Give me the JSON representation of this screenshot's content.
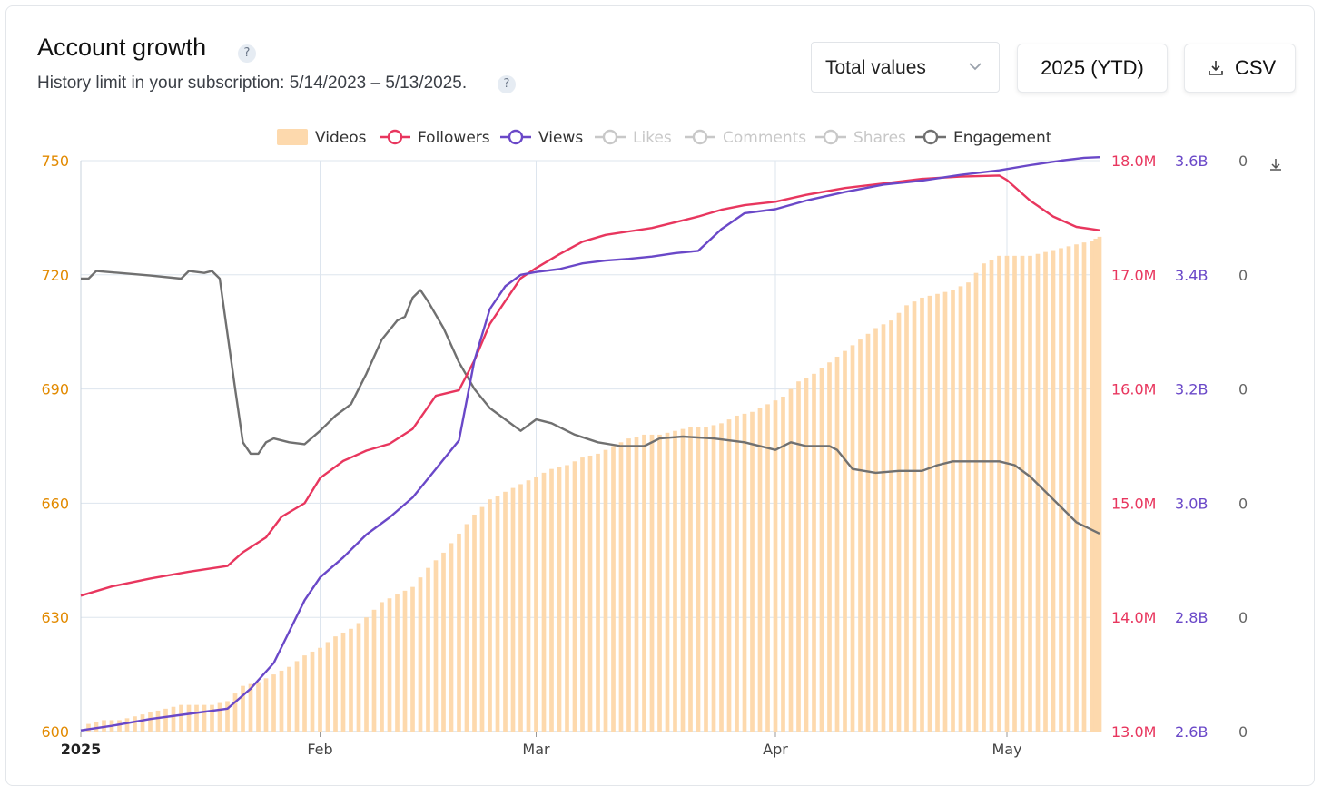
{
  "header": {
    "title": "Account growth",
    "subtitle": "History limit in your subscription: 5/14/2023 – 5/13/2025.",
    "help_glyph": "?",
    "select_value": "Total values",
    "period_button": "2025 (YTD)",
    "csv_button": "CSV"
  },
  "colors": {
    "videos": "#fdd9ad",
    "followers": "#e8365e",
    "views": "#6a48c8",
    "engagement": "#707070",
    "disabled": "#c8c8c8",
    "left_axis": "#e28a00",
    "grid": "#dde5ee"
  },
  "chart_data": {
    "type": "line",
    "x_start": "2025-01-01",
    "x_end": "2025-05-13",
    "x_tick_labels": [
      {
        "label": "2025",
        "date": "2025-01-01",
        "bold": true
      },
      {
        "label": "Feb",
        "date": "2025-02-01"
      },
      {
        "label": "Mar",
        "date": "2025-03-01"
      },
      {
        "label": "Apr",
        "date": "2025-04-01"
      },
      {
        "label": "May",
        "date": "2025-05-01"
      }
    ],
    "axes": {
      "left": {
        "ticks": [
          "750",
          "720",
          "690",
          "660",
          "630",
          "600"
        ],
        "range": [
          600,
          750
        ],
        "color": "#e28a00"
      },
      "followers": {
        "ticks": [
          "18.0M",
          "17.0M",
          "16.0M",
          "15.0M",
          "14.0M",
          "13.0M"
        ],
        "range": [
          13000000,
          18000000
        ],
        "color": "#e8365e"
      },
      "views": {
        "ticks": [
          "3.6B",
          "3.4B",
          "3.2B",
          "3.0B",
          "2.8B",
          "2.6B"
        ],
        "range": [
          2600000000,
          3600000000
        ],
        "color": "#6a48c8"
      },
      "engagement": {
        "ticks": [
          "0",
          "0",
          "0",
          "0",
          "0",
          "0"
        ],
        "color": "#666666"
      }
    },
    "legend": {
      "position": "top-center",
      "items": [
        {
          "name": "Videos",
          "kind": "bar",
          "enabled": true
        },
        {
          "name": "Followers",
          "kind": "line",
          "enabled": true
        },
        {
          "name": "Views",
          "kind": "line",
          "enabled": true
        },
        {
          "name": "Likes",
          "kind": "line",
          "enabled": false
        },
        {
          "name": "Comments",
          "kind": "line",
          "enabled": false
        },
        {
          "name": "Shares",
          "kind": "line",
          "enabled": false
        },
        {
          "name": "Engagement",
          "kind": "line",
          "enabled": true
        }
      ]
    },
    "series": [
      {
        "name": "Videos",
        "axis": "left",
        "type": "bar",
        "points": [
          [
            "2025-01-02",
            602
          ],
          [
            "2025-01-04",
            603
          ],
          [
            "2025-01-06",
            603
          ],
          [
            "2025-01-08",
            604
          ],
          [
            "2025-01-10",
            605
          ],
          [
            "2025-01-12",
            606
          ],
          [
            "2025-01-14",
            607
          ],
          [
            "2025-01-16",
            607
          ],
          [
            "2025-01-18",
            607
          ],
          [
            "2025-01-20",
            608
          ],
          [
            "2025-01-22",
            612
          ],
          [
            "2025-01-24",
            613
          ],
          [
            "2025-01-26",
            615
          ],
          [
            "2025-01-28",
            617
          ],
          [
            "2025-01-30",
            620
          ],
          [
            "2025-02-01",
            622
          ],
          [
            "2025-02-03",
            625
          ],
          [
            "2025-02-05",
            627
          ],
          [
            "2025-02-07",
            630
          ],
          [
            "2025-02-09",
            634
          ],
          [
            "2025-02-11",
            636
          ],
          [
            "2025-02-13",
            638
          ],
          [
            "2025-02-15",
            643
          ],
          [
            "2025-02-17",
            647
          ],
          [
            "2025-02-19",
            652
          ],
          [
            "2025-02-21",
            657
          ],
          [
            "2025-02-23",
            661
          ],
          [
            "2025-02-25",
            663
          ],
          [
            "2025-02-27",
            665
          ],
          [
            "2025-03-01",
            667
          ],
          [
            "2025-03-03",
            669
          ],
          [
            "2025-03-05",
            670
          ],
          [
            "2025-03-07",
            672
          ],
          [
            "2025-03-09",
            673
          ],
          [
            "2025-03-11",
            675
          ],
          [
            "2025-03-13",
            677
          ],
          [
            "2025-03-15",
            678
          ],
          [
            "2025-03-17",
            678
          ],
          [
            "2025-03-19",
            679
          ],
          [
            "2025-03-21",
            680
          ],
          [
            "2025-03-23",
            680
          ],
          [
            "2025-03-25",
            681
          ],
          [
            "2025-03-27",
            683
          ],
          [
            "2025-03-29",
            684
          ],
          [
            "2025-03-31",
            686
          ],
          [
            "2025-04-02",
            688
          ],
          [
            "2025-04-04",
            692
          ],
          [
            "2025-04-06",
            694
          ],
          [
            "2025-04-08",
            697
          ],
          [
            "2025-04-10",
            700
          ],
          [
            "2025-04-12",
            703
          ],
          [
            "2025-04-14",
            706
          ],
          [
            "2025-04-16",
            708
          ],
          [
            "2025-04-18",
            712
          ],
          [
            "2025-04-20",
            714
          ],
          [
            "2025-04-22",
            715
          ],
          [
            "2025-04-24",
            716
          ],
          [
            "2025-04-26",
            718
          ],
          [
            "2025-04-28",
            723
          ],
          [
            "2025-04-30",
            725
          ],
          [
            "2025-05-02",
            725
          ],
          [
            "2025-05-04",
            725
          ],
          [
            "2025-05-06",
            726
          ],
          [
            "2025-05-08",
            727
          ],
          [
            "2025-05-10",
            728
          ],
          [
            "2025-05-12",
            729
          ],
          [
            "2025-05-13",
            730
          ]
        ]
      },
      {
        "name": "Followers",
        "axis": "followers",
        "points": [
          [
            "2025-01-01",
            14190000
          ],
          [
            "2025-01-05",
            14270000
          ],
          [
            "2025-01-10",
            14340000
          ],
          [
            "2025-01-15",
            14400000
          ],
          [
            "2025-01-20",
            14450000
          ],
          [
            "2025-01-22",
            14570000
          ],
          [
            "2025-01-25",
            14700000
          ],
          [
            "2025-01-27",
            14880000
          ],
          [
            "2025-01-30",
            15000000
          ],
          [
            "2025-02-01",
            15220000
          ],
          [
            "2025-02-04",
            15370000
          ],
          [
            "2025-02-07",
            15460000
          ],
          [
            "2025-02-10",
            15520000
          ],
          [
            "2025-02-13",
            15650000
          ],
          [
            "2025-02-16",
            15940000
          ],
          [
            "2025-02-19",
            15990000
          ],
          [
            "2025-02-21",
            16250000
          ],
          [
            "2025-02-23",
            16570000
          ],
          [
            "2025-02-25",
            16770000
          ],
          [
            "2025-02-27",
            16970000
          ],
          [
            "2025-03-01",
            17060000
          ],
          [
            "2025-03-04",
            17180000
          ],
          [
            "2025-03-07",
            17290000
          ],
          [
            "2025-03-10",
            17350000
          ],
          [
            "2025-03-13",
            17380000
          ],
          [
            "2025-03-16",
            17410000
          ],
          [
            "2025-03-19",
            17460000
          ],
          [
            "2025-03-22",
            17510000
          ],
          [
            "2025-03-25",
            17570000
          ],
          [
            "2025-03-28",
            17610000
          ],
          [
            "2025-04-01",
            17640000
          ],
          [
            "2025-04-05",
            17700000
          ],
          [
            "2025-04-10",
            17760000
          ],
          [
            "2025-04-15",
            17800000
          ],
          [
            "2025-04-20",
            17840000
          ],
          [
            "2025-04-25",
            17860000
          ],
          [
            "2025-04-30",
            17870000
          ],
          [
            "2025-05-01",
            17830000
          ],
          [
            "2025-05-04",
            17650000
          ],
          [
            "2025-05-07",
            17510000
          ],
          [
            "2025-05-10",
            17420000
          ],
          [
            "2025-05-13",
            17390000
          ]
        ]
      },
      {
        "name": "Views",
        "axis": "views",
        "points": [
          [
            "2025-01-01",
            2602000000
          ],
          [
            "2025-01-05",
            2610000000
          ],
          [
            "2025-01-10",
            2622000000
          ],
          [
            "2025-01-15",
            2631000000
          ],
          [
            "2025-01-20",
            2640000000
          ],
          [
            "2025-01-23",
            2675000000
          ],
          [
            "2025-01-26",
            2720000000
          ],
          [
            "2025-01-28",
            2775000000
          ],
          [
            "2025-01-30",
            2830000000
          ],
          [
            "2025-02-01",
            2870000000
          ],
          [
            "2025-02-04",
            2905000000
          ],
          [
            "2025-02-07",
            2945000000
          ],
          [
            "2025-02-10",
            2975000000
          ],
          [
            "2025-02-13",
            3010000000
          ],
          [
            "2025-02-16",
            3060000000
          ],
          [
            "2025-02-19",
            3110000000
          ],
          [
            "2025-02-21",
            3250000000
          ],
          [
            "2025-02-23",
            3340000000
          ],
          [
            "2025-02-25",
            3380000000
          ],
          [
            "2025-02-27",
            3400000000
          ],
          [
            "2025-03-01",
            3405000000
          ],
          [
            "2025-03-04",
            3410000000
          ],
          [
            "2025-03-07",
            3420000000
          ],
          [
            "2025-03-10",
            3425000000
          ],
          [
            "2025-03-13",
            3428000000
          ],
          [
            "2025-03-16",
            3432000000
          ],
          [
            "2025-03-19",
            3438000000
          ],
          [
            "2025-03-22",
            3442000000
          ],
          [
            "2025-03-25",
            3480000000
          ],
          [
            "2025-03-28",
            3508000000
          ],
          [
            "2025-04-01",
            3515000000
          ],
          [
            "2025-04-05",
            3530000000
          ],
          [
            "2025-04-10",
            3545000000
          ],
          [
            "2025-04-15",
            3558000000
          ],
          [
            "2025-04-20",
            3565000000
          ],
          [
            "2025-04-25",
            3575000000
          ],
          [
            "2025-04-30",
            3583000000
          ],
          [
            "2025-05-04",
            3592000000
          ],
          [
            "2025-05-08",
            3600000000
          ],
          [
            "2025-05-11",
            3605000000
          ],
          [
            "2025-05-13",
            3606000000
          ]
        ]
      },
      {
        "name": "Engagement",
        "axis": "left_scaled_visual",
        "points": [
          [
            "2025-01-01",
            719
          ],
          [
            "2025-01-02",
            719
          ],
          [
            "2025-01-03",
            721
          ],
          [
            "2025-01-06",
            720.5
          ],
          [
            "2025-01-10",
            719.8
          ],
          [
            "2025-01-14",
            719
          ],
          [
            "2025-01-15",
            721
          ],
          [
            "2025-01-17",
            720.5
          ],
          [
            "2025-01-18",
            721
          ],
          [
            "2025-01-19",
            719
          ],
          [
            "2025-01-21",
            690
          ],
          [
            "2025-01-22",
            676
          ],
          [
            "2025-01-23",
            673
          ],
          [
            "2025-01-24",
            673
          ],
          [
            "2025-01-25",
            676
          ],
          [
            "2025-01-26",
            677
          ],
          [
            "2025-01-28",
            676
          ],
          [
            "2025-01-30",
            675.5
          ],
          [
            "2025-02-01",
            679
          ],
          [
            "2025-02-03",
            683
          ],
          [
            "2025-02-05",
            686
          ],
          [
            "2025-02-07",
            694
          ],
          [
            "2025-02-09",
            703
          ],
          [
            "2025-02-11",
            708
          ],
          [
            "2025-02-12",
            709
          ],
          [
            "2025-02-13",
            714
          ],
          [
            "2025-02-14",
            716
          ],
          [
            "2025-02-15",
            713
          ],
          [
            "2025-02-17",
            706
          ],
          [
            "2025-02-19",
            697
          ],
          [
            "2025-02-21",
            690
          ],
          [
            "2025-02-23",
            685
          ],
          [
            "2025-02-25",
            682
          ],
          [
            "2025-02-27",
            679
          ],
          [
            "2025-03-01",
            682
          ],
          [
            "2025-03-03",
            681
          ],
          [
            "2025-03-06",
            678
          ],
          [
            "2025-03-09",
            676
          ],
          [
            "2025-03-12",
            675
          ],
          [
            "2025-03-15",
            675
          ],
          [
            "2025-03-17",
            677
          ],
          [
            "2025-03-20",
            677.5
          ],
          [
            "2025-03-24",
            677
          ],
          [
            "2025-03-28",
            676
          ],
          [
            "2025-04-01",
            674
          ],
          [
            "2025-04-03",
            676
          ],
          [
            "2025-04-05",
            675
          ],
          [
            "2025-04-08",
            675
          ],
          [
            "2025-04-09",
            674
          ],
          [
            "2025-04-11",
            669
          ],
          [
            "2025-04-14",
            668
          ],
          [
            "2025-04-17",
            668.5
          ],
          [
            "2025-04-20",
            668.5
          ],
          [
            "2025-04-22",
            670
          ],
          [
            "2025-04-24",
            671
          ],
          [
            "2025-04-27",
            671
          ],
          [
            "2025-04-30",
            671
          ],
          [
            "2025-05-02",
            670
          ],
          [
            "2025-05-04",
            667
          ],
          [
            "2025-05-06",
            663
          ],
          [
            "2025-05-08",
            659
          ],
          [
            "2025-05-10",
            655
          ],
          [
            "2025-05-13",
            652
          ]
        ]
      }
    ],
    "grid": true
  }
}
